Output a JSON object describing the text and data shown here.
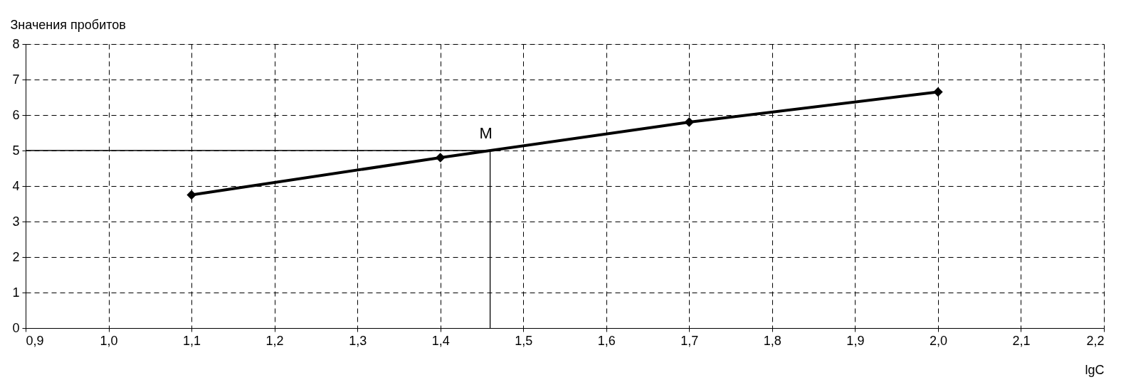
{
  "chart_data": {
    "type": "line",
    "ylabel": "Значения пробитов",
    "xlabel": "lgC",
    "xlim": [
      0.9,
      2.2
    ],
    "ylim": [
      0,
      8
    ],
    "xticks": [
      {
        "value": 0.9,
        "label": "0,9"
      },
      {
        "value": 1.0,
        "label": "1,0"
      },
      {
        "value": 1.1,
        "label": "1,1"
      },
      {
        "value": 1.2,
        "label": "1,2"
      },
      {
        "value": 1.3,
        "label": "1,3"
      },
      {
        "value": 1.4,
        "label": "1,4"
      },
      {
        "value": 1.5,
        "label": "1,5"
      },
      {
        "value": 1.6,
        "label": "1,6"
      },
      {
        "value": 1.7,
        "label": "1,7"
      },
      {
        "value": 1.8,
        "label": "1,8"
      },
      {
        "value": 1.9,
        "label": "1,9"
      },
      {
        "value": 2.0,
        "label": "2,0"
      },
      {
        "value": 2.1,
        "label": "2,1"
      },
      {
        "value": 2.2,
        "label": "2,2"
      }
    ],
    "yticks": [
      0,
      1,
      2,
      3,
      4,
      5,
      6,
      7,
      8
    ],
    "grid": true,
    "marker": "diamond",
    "line_style": "solid",
    "series": [
      {
        "color": "#000000",
        "x": [
          1.1,
          1.4,
          1.7,
          2.0
        ],
        "values": [
          3.75,
          4.8,
          5.8,
          6.65
        ]
      },
      {
        "type": "line",
        "marker": "none",
        "color": "#000000",
        "x": [
          0.9,
          1.46,
          1.46
        ],
        "values": [
          5,
          5,
          0
        ]
      }
    ],
    "annotations": [
      {
        "text": "M",
        "x": 1.46,
        "y": 5
      }
    ]
  }
}
